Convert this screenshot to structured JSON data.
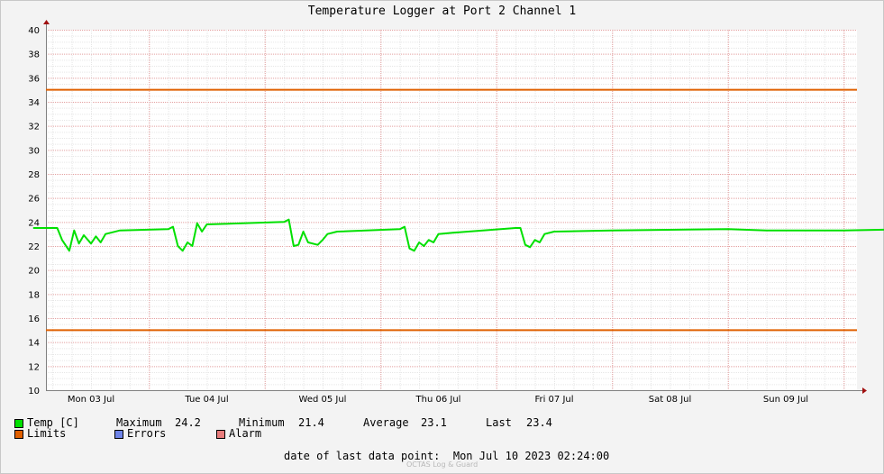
{
  "chart_data": {
    "type": "line",
    "title": "Temperature Logger at Port 2 Channel 1",
    "ylim": [
      10,
      40
    ],
    "yticks": [
      10,
      12,
      14,
      16,
      18,
      20,
      22,
      24,
      26,
      28,
      30,
      32,
      34,
      36,
      38,
      40
    ],
    "xlabels": [
      "Mon 03 Jul",
      "Tue 04 Jul",
      "Wed 05 Jul",
      "Thu 06 Jul",
      "Fri 07 Jul",
      "Sat 08 Jul",
      "Sun 09 Jul"
    ],
    "grid": true,
    "series": [
      {
        "name": "Temp [C]",
        "color": "#00e000",
        "points": [
          [
            "2023-07-02 12:00",
            23.5
          ],
          [
            "2023-07-02 17:00",
            23.5
          ],
          [
            "2023-07-02 18:00",
            22.5
          ],
          [
            "2023-07-02 19:30",
            21.6
          ],
          [
            "2023-07-02 20:30",
            23.3
          ],
          [
            "2023-07-02 21:30",
            22.2
          ],
          [
            "2023-07-02 22:30",
            22.9
          ],
          [
            "2023-07-03 00:00",
            22.2
          ],
          [
            "2023-07-03 01:00",
            22.8
          ],
          [
            "2023-07-03 02:00",
            22.3
          ],
          [
            "2023-07-03 03:00",
            23.0
          ],
          [
            "2023-07-03 06:00",
            23.3
          ],
          [
            "2023-07-03 16:00",
            23.4
          ],
          [
            "2023-07-03 17:00",
            23.6
          ],
          [
            "2023-07-03 18:00",
            22.0
          ],
          [
            "2023-07-03 19:00",
            21.6
          ],
          [
            "2023-07-03 20:00",
            22.3
          ],
          [
            "2023-07-03 21:00",
            22.0
          ],
          [
            "2023-07-03 22:00",
            23.9
          ],
          [
            "2023-07-03 23:00",
            23.2
          ],
          [
            "2023-07-04 00:00",
            23.8
          ],
          [
            "2023-07-04 16:00",
            24.0
          ],
          [
            "2023-07-04 17:00",
            24.2
          ],
          [
            "2023-07-04 18:00",
            22.0
          ],
          [
            "2023-07-04 19:00",
            22.1
          ],
          [
            "2023-07-04 20:00",
            23.2
          ],
          [
            "2023-07-04 21:00",
            22.3
          ],
          [
            "2023-07-04 23:00",
            22.1
          ],
          [
            "2023-07-05 00:00",
            22.5
          ],
          [
            "2023-07-05 01:00",
            23.0
          ],
          [
            "2023-07-05 03:00",
            23.2
          ],
          [
            "2023-07-05 16:00",
            23.4
          ],
          [
            "2023-07-05 17:00",
            23.6
          ],
          [
            "2023-07-05 18:00",
            21.8
          ],
          [
            "2023-07-05 19:00",
            21.6
          ],
          [
            "2023-07-05 20:00",
            22.3
          ],
          [
            "2023-07-05 21:00",
            22.0
          ],
          [
            "2023-07-05 22:00",
            22.5
          ],
          [
            "2023-07-05 23:00",
            22.3
          ],
          [
            "2023-07-06 00:00",
            23.0
          ],
          [
            "2023-07-06 03:00",
            23.1
          ],
          [
            "2023-07-06 16:00",
            23.5
          ],
          [
            "2023-07-06 17:00",
            23.5
          ],
          [
            "2023-07-06 18:00",
            22.1
          ],
          [
            "2023-07-06 19:00",
            21.9
          ],
          [
            "2023-07-06 20:00",
            22.5
          ],
          [
            "2023-07-06 21:00",
            22.3
          ],
          [
            "2023-07-06 22:00",
            23.0
          ],
          [
            "2023-07-07 00:00",
            23.2
          ],
          [
            "2023-07-07 12:00",
            23.3
          ],
          [
            "2023-07-08 12:00",
            23.4
          ],
          [
            "2023-07-08 20:00",
            23.3
          ],
          [
            "2023-07-09 12:00",
            23.3
          ],
          [
            "2023-07-10 02:24",
            23.4
          ]
        ]
      },
      {
        "name": "Limits",
        "color": "#e06000",
        "values": [
          15,
          35
        ]
      },
      {
        "name": "Errors",
        "color": "#6f84e8"
      },
      {
        "name": "Alarm",
        "color": "#e87c7c"
      }
    ],
    "stats": {
      "maximum_label": "Maximum",
      "maximum": "24.2",
      "minimum_label": "Minimum",
      "minimum": "21.4",
      "average_label": "Average",
      "average": "23.1",
      "last_label": "Last",
      "last": "23.4"
    }
  },
  "footer": {
    "label": "date of last data point:",
    "value": "Mon Jul 10 2023 02:24:00",
    "watermark": "OCTAS Log & Guard"
  }
}
